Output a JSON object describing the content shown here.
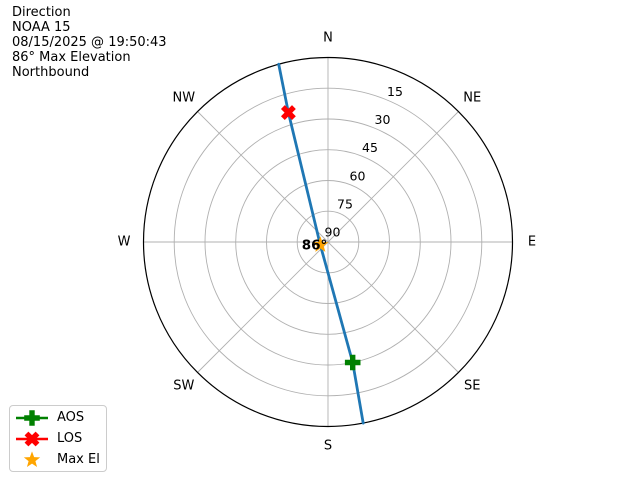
{
  "header": {
    "lines": [
      "Direction",
      "NOAA 15",
      "08/15/2025 @ 19:50:43",
      "86° Max Elevation",
      "Northbound"
    ]
  },
  "legend": {
    "items": [
      {
        "label": "AOS",
        "marker": "plus",
        "color": "#008000",
        "line": true
      },
      {
        "label": "LOS",
        "marker": "x",
        "color": "#ff0000",
        "line": true
      },
      {
        "label": "Max El",
        "marker": "star",
        "color": "#ffa500",
        "line": false
      }
    ]
  },
  "chart_data": {
    "type": "polar-azimuth-elevation",
    "title": "Direction",
    "satellite": "NOAA 15",
    "pass_time": "08/15/2025 @ 19:50:43",
    "max_elevation_deg": 86,
    "pass_direction": "Northbound",
    "compass_labels": [
      "N",
      "NE",
      "E",
      "SE",
      "S",
      "SW",
      "W",
      "NW"
    ],
    "elevation_rings_deg": [
      15,
      30,
      45,
      60,
      75
    ],
    "elevation_tick_labels": [
      "15",
      "30",
      "45",
      "60",
      "75",
      "90"
    ],
    "ring_label_azimuth_deg": 24,
    "grid_on": true,
    "grid_color": "#b0b0b0",
    "outline_color": "#000000",
    "track": {
      "name": "satellite pass track",
      "color": "#1f77b4",
      "points_az_el": [
        [
          169.0,
          0
        ],
        [
          168.4,
          30
        ],
        [
          249.4,
          86
        ],
        [
          343.0,
          24
        ],
        [
          344.5,
          0
        ]
      ]
    },
    "markers": [
      {
        "name": "AOS",
        "az": 168.4,
        "el": 30,
        "marker": "plus",
        "color": "#008000"
      },
      {
        "name": "LOS",
        "az": 343.0,
        "el": 24,
        "marker": "x",
        "color": "#ff0000"
      },
      {
        "name": "Max El",
        "az": 249.4,
        "el": 86,
        "marker": "star",
        "color": "#ffa500"
      }
    ],
    "max_el_annotation": "86°",
    "legend_position": "lower-left"
  }
}
